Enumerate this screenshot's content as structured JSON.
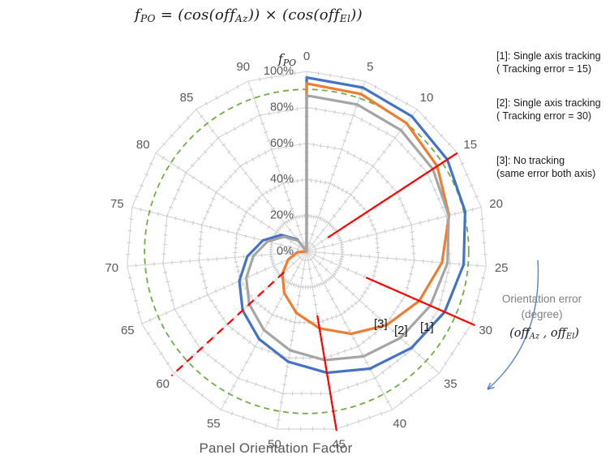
{
  "formula_title": {
    "tokens": [
      {
        "t": "f"
      },
      {
        "t": "PO",
        "sub": true
      },
      {
        "t": " = ("
      },
      {
        "t": "cos"
      },
      {
        "t": "("
      },
      {
        "t": "off"
      },
      {
        "t": "Az",
        "sub": true
      },
      {
        "t": ")) × ("
      },
      {
        "t": "cos"
      },
      {
        "t": "("
      },
      {
        "t": "off"
      },
      {
        "t": "El",
        "sub": true
      },
      {
        "t": "))"
      }
    ]
  },
  "side_legend": {
    "items": [
      {
        "line1": "[1]: Single axis tracking",
        "line2": "( Tracking error = 15)"
      },
      {
        "line1": "[2]: Single axis tracking",
        "line2": "( Tracking error = 30)"
      },
      {
        "line1": "[3]: No tracking",
        "line2": "(same error both axis)"
      }
    ]
  },
  "annotations": {
    "orientation": {
      "line1": "Orientation error",
      "line2": "(degree)",
      "offs_tokens": [
        {
          "t": "("
        },
        {
          "t": "off"
        },
        {
          "t": "Az",
          "sub": true
        },
        {
          "t": " , "
        },
        {
          "t": "off"
        },
        {
          "t": "El",
          "sub": true
        },
        {
          "t": ")"
        }
      ]
    }
  },
  "plot_labels": {
    "s3": "[3]",
    "s2": "[2]",
    "s1": "[1]"
  },
  "chart_data": {
    "type": "line",
    "polar": true,
    "title": "Panel Orientation Factor",
    "categories": [
      "0",
      "5",
      "10",
      "15",
      "20",
      "25",
      "30",
      "35",
      "40",
      "45",
      "50",
      "55",
      "60",
      "65",
      "70",
      "75",
      "80",
      "85",
      "90"
    ],
    "category_axis_meaning": "Orientation error (degree)",
    "radial": {
      "min": 0,
      "max": 100,
      "major_step": 20,
      "minor_step": 5,
      "labels": [
        "0%",
        "20%",
        "40%",
        "60%",
        "80%",
        "100%"
      ],
      "axis_title_tokens": [
        {
          "t": "f"
        },
        {
          "t": "PO",
          "sub": true
        }
      ]
    },
    "series": [
      {
        "label": "[1]",
        "name": "Single axis tracking (Tracking error = 15)",
        "color": "#4472C4",
        "dashed": false,
        "width": 3.2,
        "values": [
          96.6,
          96.2,
          95.1,
          93.3,
          90.8,
          87.5,
          83.7,
          79.1,
          74.0,
          68.3,
          62.1,
          55.4,
          48.3,
          40.8,
          33.0,
          25.0,
          16.8,
          8.4,
          0
        ]
      },
      {
        "label": "[3]",
        "name": "No tracking (same error both axis)",
        "color": "#ED7D31",
        "dashed": false,
        "width": 3.2,
        "values": [
          93.3,
          92.5,
          90.3,
          86.6,
          81.6,
          75.4,
          68.3,
          60.4,
          52.0,
          43.3,
          34.6,
          26.2,
          18.3,
          11.2,
          5.0,
          0,
          0,
          0,
          0
        ]
      },
      {
        "label": "[2]",
        "name": "Single axis tracking (Tracking error = 30)",
        "color": "#A5A5A5",
        "dashed": false,
        "width": 3.2,
        "values": [
          86.6,
          86.3,
          85.3,
          83.7,
          81.4,
          78.5,
          75.0,
          70.9,
          66.3,
          61.2,
          55.7,
          49.7,
          43.3,
          36.6,
          29.6,
          22.4,
          15.0,
          7.5,
          0
        ]
      }
    ],
    "reference_circle": {
      "value": 90,
      "color": "#70AD47",
      "dashed": true,
      "width": 1.8
    },
    "red_marker_lines": [
      {
        "at_category": "15",
        "r0": 0.14,
        "r1": 1.0,
        "dashed": false
      },
      {
        "at_category": "30",
        "r0": 0.36,
        "r1": 1.02,
        "dashed": false
      },
      {
        "at_category": "45",
        "r0": 0.36,
        "r1": 1.01,
        "dashed": false
      },
      {
        "at_category": "60",
        "r0": 0.17,
        "r1": 1.02,
        "dashed": true
      }
    ],
    "colors": {
      "grid": "#d6d6d6",
      "ticks": "#c6c6c6",
      "labels": "#595959",
      "red": "#FF0000",
      "arrow_blue": "#4472C4"
    }
  }
}
